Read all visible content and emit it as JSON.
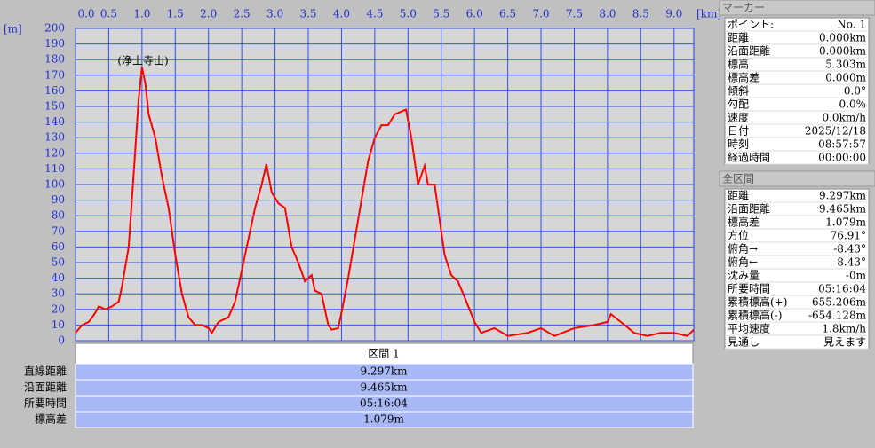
{
  "chart_data": {
    "type": "line",
    "x_unit": "[km]",
    "y_unit": "[m]",
    "annotation": "(浄土寺山)",
    "color": "#ff0000",
    "grid": true,
    "xlim": [
      0,
      9.297
    ],
    "ylim": [
      0,
      200
    ],
    "xticks": [
      {
        "value": 0,
        "label": "0.0"
      },
      0.5,
      {
        "value": 1,
        "label": "1.0"
      },
      1.5,
      {
        "value": 2,
        "label": "2.0"
      },
      2.5,
      {
        "value": 3,
        "label": "3.0"
      },
      3.5,
      {
        "value": 4,
        "label": "4.0"
      },
      4.5,
      {
        "value": 5,
        "label": "5.0"
      },
      5.5,
      {
        "value": 6,
        "label": "6.0"
      },
      6.5,
      {
        "value": 7,
        "label": "7.0"
      },
      7.5,
      {
        "value": 8,
        "label": "8.0"
      },
      8.5,
      {
        "value": 9,
        "label": "9.0"
      }
    ],
    "yticks": [
      0,
      10,
      20,
      30,
      40,
      50,
      60,
      70,
      80,
      90,
      100,
      110,
      120,
      130,
      140,
      150,
      160,
      170,
      180,
      190,
      200
    ],
    "x": [
      0,
      0.1,
      0.2,
      0.3,
      0.35,
      0.45,
      0.55,
      0.65,
      0.7,
      0.8,
      0.88,
      0.95,
      1.0,
      1.05,
      1.1,
      1.2,
      1.3,
      1.4,
      1.5,
      1.6,
      1.7,
      1.8,
      1.9,
      2.0,
      2.05,
      2.15,
      2.3,
      2.4,
      2.5,
      2.6,
      2.7,
      2.8,
      2.87,
      2.95,
      3.05,
      3.15,
      3.25,
      3.35,
      3.45,
      3.55,
      3.6,
      3.7,
      3.8,
      3.85,
      3.95,
      4.0,
      4.1,
      4.2,
      4.3,
      4.4,
      4.5,
      4.6,
      4.7,
      4.8,
      4.97,
      5.05,
      5.15,
      5.25,
      5.3,
      5.4,
      5.45,
      5.55,
      5.65,
      5.75,
      5.85,
      6.0,
      6.1,
      6.3,
      6.5,
      6.8,
      7.0,
      7.2,
      7.5,
      7.8,
      8.0,
      8.05,
      8.2,
      8.4,
      8.6,
      8.8,
      9.0,
      9.2,
      9.297
    ],
    "values": [
      5,
      10,
      12,
      18,
      22,
      20,
      22,
      25,
      35,
      60,
      110,
      155,
      175,
      165,
      145,
      130,
      105,
      85,
      55,
      30,
      15,
      10,
      10,
      8,
      5,
      12,
      15,
      25,
      45,
      65,
      85,
      100,
      113,
      95,
      88,
      85,
      60,
      50,
      38,
      42,
      32,
      30,
      10,
      7,
      8,
      18,
      40,
      65,
      90,
      115,
      130,
      138,
      138,
      145,
      148,
      130,
      100,
      112,
      100,
      100,
      85,
      55,
      42,
      38,
      28,
      12,
      5,
      8,
      3,
      5,
      8,
      3,
      8,
      10,
      12,
      17,
      12,
      5,
      3,
      5,
      5,
      3,
      7
    ]
  },
  "section_table": {
    "header": "区間 1",
    "rows": [
      [
        "直線距離",
        "9.297km"
      ],
      [
        "沿面距離",
        "9.465km"
      ],
      [
        "所要時間",
        "05:16:04"
      ],
      [
        "標高差",
        "1.079m"
      ]
    ]
  },
  "marker_panel": {
    "title": "マーカー",
    "rows": [
      [
        "ポイント:",
        "No. 1"
      ],
      [
        "距離",
        "0.000km"
      ],
      [
        "沿面距離",
        "0.000km"
      ],
      [
        "標高",
        "5.303m"
      ],
      [
        "標高差",
        "0.000m"
      ],
      [
        "傾斜",
        "0.0°"
      ],
      [
        "勾配",
        "0.0%"
      ],
      [
        "速度",
        "0.0km/h"
      ],
      [
        "日付",
        "2025/12/18"
      ],
      [
        "時刻",
        "08:57:57"
      ],
      [
        "経過時間",
        "00:00:00"
      ]
    ]
  },
  "total_panel": {
    "title": "全区間",
    "rows": [
      [
        "距離",
        "9.297km"
      ],
      [
        "沿面距離",
        "9.465km"
      ],
      [
        "標高差",
        "1.079m"
      ],
      [
        "方位",
        "76.91°"
      ],
      [
        "俯角→",
        "-8.43°"
      ],
      [
        "俯角←",
        "8.43°"
      ],
      [
        "沈み量",
        "-0m"
      ],
      [
        "所要時間",
        "05:16:04"
      ],
      [
        "累積標高(+)",
        "655.206m"
      ],
      [
        "累積標高(-)",
        "-654.128m"
      ],
      [
        "平均速度",
        "1.8km/h"
      ],
      [
        "見通し",
        "見えます"
      ]
    ]
  }
}
